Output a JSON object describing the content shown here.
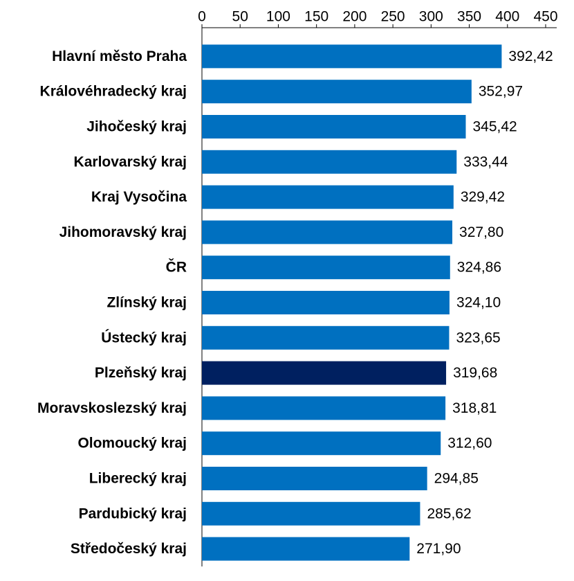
{
  "chart_data": {
    "type": "bar",
    "orientation": "horizontal",
    "categories": [
      "Hlavní město Praha",
      "Královéhradecký kraj",
      "Jihočeský kraj",
      "Karlovarský kraj",
      "Kraj Vysočina",
      "Jihomoravský kraj",
      "ČR",
      "Zlínský kraj",
      "Ústecký kraj",
      "Plzeňský kraj",
      "Moravskoslezský kraj",
      "Olomoucký kraj",
      "Liberecký kraj",
      "Pardubický kraj",
      "Středočeský kraj"
    ],
    "values": [
      392.42,
      352.97,
      345.42,
      333.44,
      329.42,
      327.8,
      324.86,
      324.1,
      323.65,
      319.68,
      318.81,
      312.6,
      294.85,
      285.62,
      271.9
    ],
    "value_labels": [
      "392,42",
      "352,97",
      "345,42",
      "333,44",
      "329,42",
      "327,80",
      "324,86",
      "324,10",
      "323,65",
      "319,68",
      "318,81",
      "312,60",
      "294,85",
      "285,62",
      "271,90"
    ],
    "colors": [
      "#0070c0",
      "#0070c0",
      "#0070c0",
      "#0070c0",
      "#0070c0",
      "#0070c0",
      "#0070c0",
      "#0070c0",
      "#0070c0",
      "#002060",
      "#0070c0",
      "#0070c0",
      "#0070c0",
      "#0070c0",
      "#0070c0"
    ],
    "xlim": [
      0,
      450
    ],
    "xticks": [
      0,
      50,
      100,
      150,
      200,
      250,
      300,
      350,
      400,
      450
    ],
    "grid": false
  }
}
